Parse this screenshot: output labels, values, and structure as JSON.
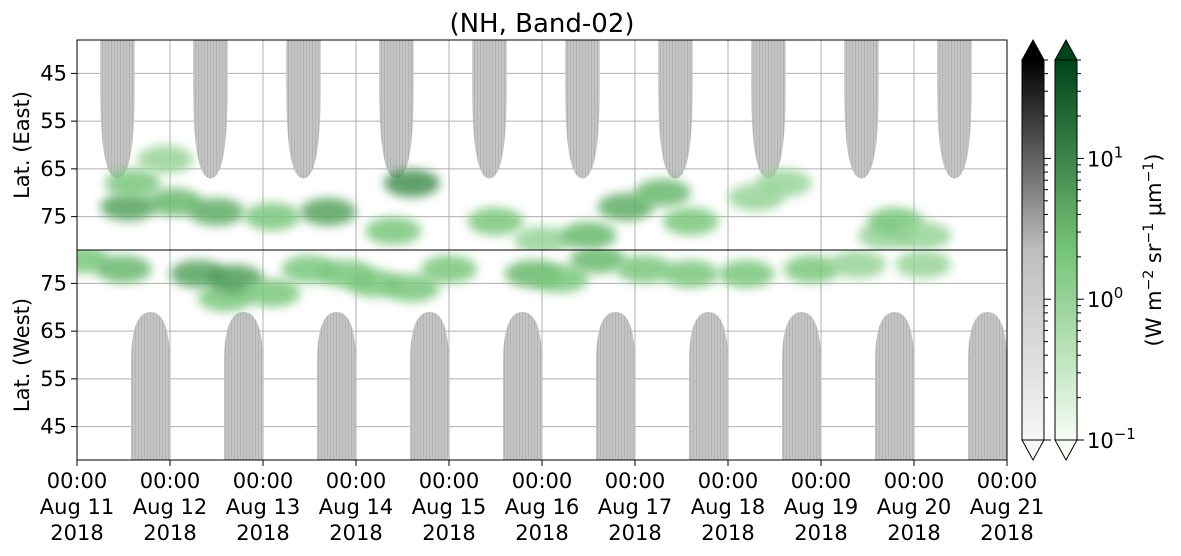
{
  "chart_data": {
    "type": "heatmap",
    "title": "(NH, Band-02)",
    "xlim": [
      "2018-08-11T00:00",
      "2018-08-21T00:00"
    ],
    "x_ticks": [
      {
        "time": "00:00",
        "date": "Aug 11",
        "year": "2018"
      },
      {
        "time": "00:00",
        "date": "Aug 12",
        "year": "2018"
      },
      {
        "time": "00:00",
        "date": "Aug 13",
        "year": "2018"
      },
      {
        "time": "00:00",
        "date": "Aug 14",
        "year": "2018"
      },
      {
        "time": "00:00",
        "date": "Aug 15",
        "year": "2018"
      },
      {
        "time": "00:00",
        "date": "Aug 16",
        "year": "2018"
      },
      {
        "time": "00:00",
        "date": "Aug 17",
        "year": "2018"
      },
      {
        "time": "00:00",
        "date": "Aug 18",
        "year": "2018"
      },
      {
        "time": "00:00",
        "date": "Aug 19",
        "year": "2018"
      },
      {
        "time": "00:00",
        "date": "Aug 20",
        "year": "2018"
      },
      {
        "time": "00:00",
        "date": "Aug 21",
        "year": "2018"
      }
    ],
    "panels": [
      {
        "ylabel": "Lat. (East)",
        "ylim": [
          38,
          82
        ],
        "yticks": [
          45,
          55,
          65,
          75
        ]
      },
      {
        "ylabel": "Lat. (West)",
        "ylim": [
          82,
          38
        ],
        "yticks": [
          75,
          65,
          55,
          45
        ]
      }
    ],
    "grid": true,
    "colorbars": [
      {
        "name": "grey",
        "scale": "log",
        "extend": "both",
        "colors": [
          "#ffffff",
          "#bdbdbd",
          "#000000"
        ]
      },
      {
        "name": "green",
        "scale": "log",
        "extend": "both",
        "colors": [
          "#f7fcf5",
          "#74c476",
          "#00441b"
        ],
        "range": [
          0.1,
          50
        ],
        "ticks": [
          {
            "base": "10",
            "exp": "−1",
            "value": 0.1
          },
          {
            "base": "10",
            "exp": "0",
            "value": 1
          },
          {
            "base": "10",
            "exp": "1",
            "value": 10
          }
        ]
      }
    ],
    "colorbar_label": {
      "pre": "(W m",
      "e1": "−2",
      "mid": " sr",
      "e2": "−1",
      "mu": " μm",
      "e3": "−1",
      "post": ")"
    },
    "night_mask_color": "#bdbdbd",
    "night_regions": {
      "east": [
        {
          "start_day": 0.25,
          "end_day": 0.62,
          "min_lat": 67
        },
        {
          "start_day": 1.25,
          "end_day": 1.62,
          "min_lat": 67
        },
        {
          "start_day": 2.25,
          "end_day": 2.62,
          "min_lat": 67
        },
        {
          "start_day": 3.25,
          "end_day": 3.62,
          "min_lat": 67
        },
        {
          "start_day": 4.25,
          "end_day": 4.62,
          "min_lat": 67
        },
        {
          "start_day": 5.25,
          "end_day": 5.62,
          "min_lat": 67
        },
        {
          "start_day": 6.25,
          "end_day": 6.62,
          "min_lat": 67
        },
        {
          "start_day": 7.25,
          "end_day": 7.62,
          "min_lat": 67
        },
        {
          "start_day": 8.25,
          "end_day": 8.62,
          "min_lat": 67
        },
        {
          "start_day": 9.25,
          "end_day": 9.62,
          "min_lat": 67
        }
      ],
      "west": [
        {
          "start_day": 0.58,
          "end_day": 1.0,
          "min_lat": 69
        },
        {
          "start_day": 1.58,
          "end_day": 2.0,
          "min_lat": 69
        },
        {
          "start_day": 2.58,
          "end_day": 3.0,
          "min_lat": 69
        },
        {
          "start_day": 3.58,
          "end_day": 4.0,
          "min_lat": 69
        },
        {
          "start_day": 4.58,
          "end_day": 5.0,
          "min_lat": 69
        },
        {
          "start_day": 5.58,
          "end_day": 6.0,
          "min_lat": 69
        },
        {
          "start_day": 6.58,
          "end_day": 7.0,
          "min_lat": 69
        },
        {
          "start_day": 7.58,
          "end_day": 8.0,
          "min_lat": 69
        },
        {
          "start_day": 8.58,
          "end_day": 9.0,
          "min_lat": 69
        },
        {
          "start_day": 9.58,
          "end_day": 10.0,
          "min_lat": 69
        }
      ]
    },
    "green_patches": [
      {
        "panel": "east",
        "day": 0.55,
        "lat": 73,
        "value": 5
      },
      {
        "panel": "east",
        "day": 0.6,
        "lat": 68,
        "value": 2
      },
      {
        "panel": "east",
        "day": 0.95,
        "lat": 63,
        "value": 1
      },
      {
        "panel": "east",
        "day": 1.05,
        "lat": 72,
        "value": 3
      },
      {
        "panel": "east",
        "day": 1.5,
        "lat": 74,
        "value": 4
      },
      {
        "panel": "east",
        "day": 2.1,
        "lat": 75,
        "value": 2
      },
      {
        "panel": "east",
        "day": 2.7,
        "lat": 74,
        "value": 5
      },
      {
        "panel": "east",
        "day": 3.6,
        "lat": 68,
        "value": 8
      },
      {
        "panel": "east",
        "day": 3.4,
        "lat": 78,
        "value": 2
      },
      {
        "panel": "east",
        "day": 4.5,
        "lat": 76,
        "value": 2
      },
      {
        "panel": "east",
        "day": 5.0,
        "lat": 80,
        "value": 1
      },
      {
        "panel": "east",
        "day": 5.5,
        "lat": 79,
        "value": 3
      },
      {
        "panel": "east",
        "day": 5.9,
        "lat": 73,
        "value": 4
      },
      {
        "panel": "east",
        "day": 6.3,
        "lat": 70,
        "value": 3
      },
      {
        "panel": "east",
        "day": 6.6,
        "lat": 76,
        "value": 2
      },
      {
        "panel": "east",
        "day": 7.3,
        "lat": 71,
        "value": 1
      },
      {
        "panel": "east",
        "day": 7.6,
        "lat": 68,
        "value": 1
      },
      {
        "panel": "east",
        "day": 8.7,
        "lat": 79,
        "value": 1
      },
      {
        "panel": "east",
        "day": 8.8,
        "lat": 76,
        "value": 2
      },
      {
        "panel": "east",
        "day": 9.1,
        "lat": 79,
        "value": 1
      },
      {
        "panel": "west",
        "day": 0.05,
        "lat": 80,
        "value": 2
      },
      {
        "panel": "west",
        "day": 0.5,
        "lat": 78,
        "value": 3
      },
      {
        "panel": "west",
        "day": 1.3,
        "lat": 77,
        "value": 5
      },
      {
        "panel": "west",
        "day": 1.6,
        "lat": 72,
        "value": 2
      },
      {
        "panel": "west",
        "day": 1.7,
        "lat": 76,
        "value": 6
      },
      {
        "panel": "west",
        "day": 2.1,
        "lat": 73,
        "value": 2
      },
      {
        "panel": "west",
        "day": 2.5,
        "lat": 78,
        "value": 2
      },
      {
        "panel": "west",
        "day": 2.9,
        "lat": 77,
        "value": 2
      },
      {
        "panel": "west",
        "day": 3.2,
        "lat": 75,
        "value": 2
      },
      {
        "panel": "west",
        "day": 3.6,
        "lat": 74,
        "value": 2
      },
      {
        "panel": "west",
        "day": 4.0,
        "lat": 78,
        "value": 2
      },
      {
        "panel": "west",
        "day": 4.9,
        "lat": 77,
        "value": 3
      },
      {
        "panel": "west",
        "day": 5.2,
        "lat": 76,
        "value": 2
      },
      {
        "panel": "west",
        "day": 5.6,
        "lat": 80,
        "value": 3
      },
      {
        "panel": "west",
        "day": 6.1,
        "lat": 78,
        "value": 2
      },
      {
        "panel": "west",
        "day": 6.6,
        "lat": 77,
        "value": 2
      },
      {
        "panel": "west",
        "day": 7.2,
        "lat": 77,
        "value": 2
      },
      {
        "panel": "west",
        "day": 7.9,
        "lat": 78,
        "value": 2
      },
      {
        "panel": "west",
        "day": 8.4,
        "lat": 79,
        "value": 1
      },
      {
        "panel": "west",
        "day": 9.1,
        "lat": 79,
        "value": 1
      }
    ]
  }
}
